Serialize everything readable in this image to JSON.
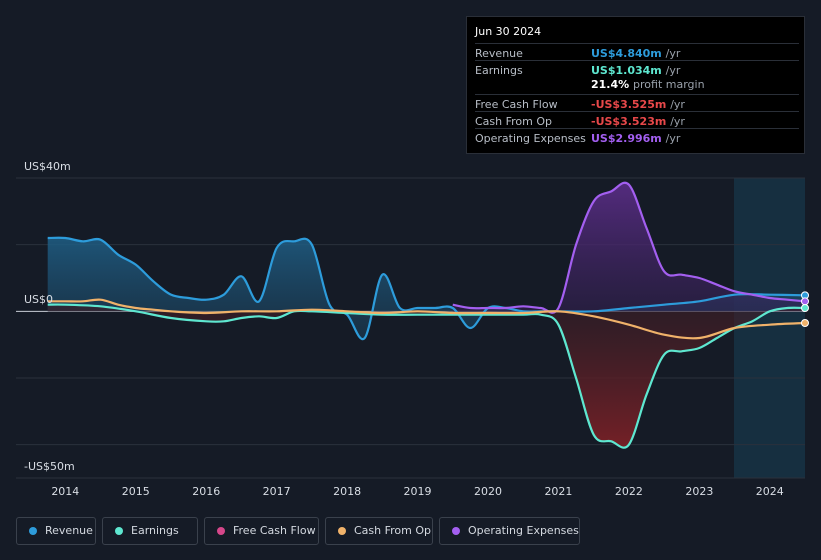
{
  "tooltip": {
    "date": "Jun 30 2024",
    "rows": [
      {
        "label": "Revenue",
        "value": "US$4.840m",
        "unit": "/yr",
        "color": "#2d9cdb"
      },
      {
        "label": "Earnings",
        "value": "US$1.034m",
        "unit": "/yr",
        "color": "#5ee7d0"
      },
      {
        "label": "Free Cash Flow",
        "value": "-US$3.525m",
        "unit": "/yr",
        "color": "#e8484a"
      },
      {
        "label": "Cash From Op",
        "value": "-US$3.523m",
        "unit": "/yr",
        "color": "#e8484a"
      },
      {
        "label": "Operating Expenses",
        "value": "US$2.996m",
        "unit": "/yr",
        "color": "#a35ff0"
      }
    ],
    "margin_value": "21.4%",
    "margin_label": "profit margin"
  },
  "legend": [
    {
      "label": "Revenue",
      "color": "#2d9cdb"
    },
    {
      "label": "Earnings",
      "color": "#5ee7d0"
    },
    {
      "label": "Free Cash Flow",
      "color": "#d6478a"
    },
    {
      "label": "Cash From Op",
      "color": "#f0b26a"
    },
    {
      "label": "Operating Expenses",
      "color": "#a35ff0"
    }
  ],
  "chart_data": {
    "type": "area",
    "title": "",
    "ylabel_top": "US$40m",
    "ylabel_zero": "US$0",
    "ylabel_bottom": "-US$50m",
    "ylim": [
      -50,
      40
    ],
    "x_ticks": [
      "2014",
      "2015",
      "2016",
      "2017",
      "2018",
      "2019",
      "2020",
      "2021",
      "2022",
      "2023",
      "2024"
    ],
    "x_range": [
      2013.3,
      2024.5
    ],
    "series": [
      {
        "name": "Revenue",
        "color": "#2d9cdb",
        "x": [
          2013.75,
          2014.0,
          2014.25,
          2014.5,
          2014.75,
          2015.0,
          2015.25,
          2015.5,
          2015.75,
          2016.0,
          2016.25,
          2016.5,
          2016.75,
          2017.0,
          2017.25,
          2017.5,
          2017.75,
          2018.0,
          2018.25,
          2018.5,
          2018.75,
          2019.0,
          2019.25,
          2019.5,
          2019.75,
          2020.0,
          2020.25,
          2020.5,
          2020.75,
          2021.0,
          2021.5,
          2022.0,
          2022.5,
          2023.0,
          2023.5,
          2024.0,
          2024.5
        ],
        "values": [
          22,
          22,
          21,
          21.5,
          17,
          14,
          9,
          5,
          4,
          3.5,
          5,
          10.5,
          3,
          19,
          21,
          20,
          2,
          -1,
          -8,
          11,
          1,
          1,
          1,
          1,
          -5,
          1,
          1,
          0,
          0,
          0,
          0,
          1,
          2,
          3,
          5,
          5,
          4.8
        ]
      },
      {
        "name": "Operating Expenses",
        "color": "#a35ff0",
        "x": [
          2019.5,
          2019.75,
          2020.0,
          2020.25,
          2020.5,
          2020.75,
          2021.0,
          2021.25,
          2021.5,
          2021.75,
          2022.0,
          2022.25,
          2022.5,
          2022.75,
          2023.0,
          2023.25,
          2023.5,
          2023.75,
          2024.0,
          2024.25,
          2024.5
        ],
        "values": [
          2,
          1,
          1,
          1,
          1.5,
          1,
          1,
          20,
          33,
          36,
          38,
          25,
          12,
          11,
          10,
          8,
          6,
          5,
          4,
          3.5,
          3.0
        ]
      },
      {
        "name": "Earnings",
        "color": "#5ee7d0",
        "x": [
          2013.75,
          2014.0,
          2014.5,
          2015.0,
          2015.5,
          2016.0,
          2016.25,
          2016.5,
          2016.75,
          2017.0,
          2017.25,
          2017.5,
          2018.0,
          2018.5,
          2019.0,
          2019.5,
          2020.0,
          2020.5,
          2020.75,
          2021.0,
          2021.25,
          2021.5,
          2021.75,
          2022.0,
          2022.25,
          2022.5,
          2022.75,
          2023.0,
          2023.25,
          2023.5,
          2023.75,
          2024.0,
          2024.25,
          2024.5
        ],
        "values": [
          2,
          2,
          1.5,
          0,
          -2,
          -3,
          -3,
          -2,
          -1.5,
          -2,
          0,
          0,
          -0.5,
          -1,
          -1,
          -1,
          -1,
          -1,
          -1,
          -4,
          -20,
          -37,
          -39,
          -40,
          -25,
          -13,
          -12,
          -11,
          -8,
          -5,
          -3,
          0,
          1,
          1.0
        ]
      },
      {
        "name": "Cash From Op",
        "color": "#f0b26a",
        "x": [
          2013.75,
          2014.0,
          2014.25,
          2014.5,
          2014.75,
          2015.0,
          2015.25,
          2015.5,
          2016.0,
          2016.5,
          2017.0,
          2017.5,
          2018.0,
          2018.5,
          2019.0,
          2019.5,
          2020.0,
          2020.5,
          2021.0,
          2021.5,
          2022.0,
          2022.5,
          2023.0,
          2023.5,
          2024.0,
          2024.5
        ],
        "values": [
          3,
          3,
          3,
          3.5,
          2,
          1,
          0.5,
          0,
          -0.5,
          0,
          0,
          0.5,
          0,
          -0.5,
          0,
          -0.5,
          -0.5,
          -0.5,
          0,
          -1.5,
          -4,
          -7,
          -8,
          -5,
          -4,
          -3.5
        ]
      }
    ]
  }
}
